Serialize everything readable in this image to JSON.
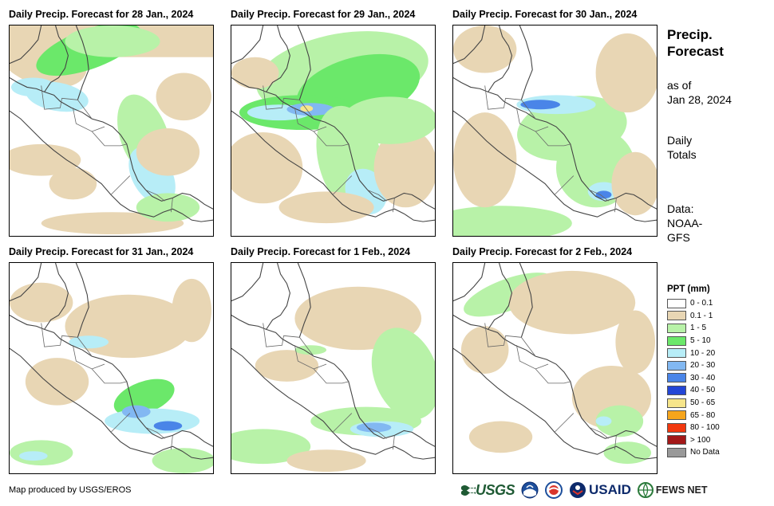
{
  "panels": [
    {
      "title": "Daily Precip. Forecast for 28 Jan., 2024"
    },
    {
      "title": "Daily Precip. Forecast for 29 Jan., 2024"
    },
    {
      "title": "Daily Precip. Forecast for 30 Jan., 2024"
    },
    {
      "title": "Daily Precip. Forecast for 31 Jan., 2024"
    },
    {
      "title": "Daily Precip. Forecast for 1 Feb., 2024"
    },
    {
      "title": "Daily Precip. Forecast for 2 Feb., 2024"
    }
  ],
  "sidebar": {
    "heading_line1": "Precip.",
    "heading_line2": "Forecast",
    "asof_line1": "as of",
    "asof_line2": "Jan 28, 2024",
    "totals_line1": "Daily",
    "totals_line2": "Totals",
    "data_line1": "Data:",
    "data_line2": "NOAA-",
    "data_line3": "GFS"
  },
  "legend": {
    "title": "PPT (mm)",
    "items": [
      {
        "label": "0 - 0.1",
        "color": "#ffffff"
      },
      {
        "label": "0.1 - 1",
        "color": "#e8d6b4"
      },
      {
        "label": "1 - 5",
        "color": "#b8f2a8"
      },
      {
        "label": "5 - 10",
        "color": "#6be86a"
      },
      {
        "label": "10 - 20",
        "color": "#b7edf7"
      },
      {
        "label": "20 - 30",
        "color": "#82b8f2"
      },
      {
        "label": "30 - 40",
        "color": "#4a85e8"
      },
      {
        "label": "40 - 50",
        "color": "#2446d6"
      },
      {
        "label": "50 - 65",
        "color": "#f6e58a"
      },
      {
        "label": "65 - 80",
        "color": "#f6a51c"
      },
      {
        "label": "80 - 100",
        "color": "#f2380f"
      },
      {
        "label": "> 100",
        "color": "#a31818"
      },
      {
        "label": "No Data",
        "color": "#999999"
      }
    ]
  },
  "footer": {
    "credit": "Map produced by USGS/EROS",
    "logo_usgs": "USGS",
    "logo_usaid": "USAID",
    "logo_fews": "FEWS NET"
  }
}
